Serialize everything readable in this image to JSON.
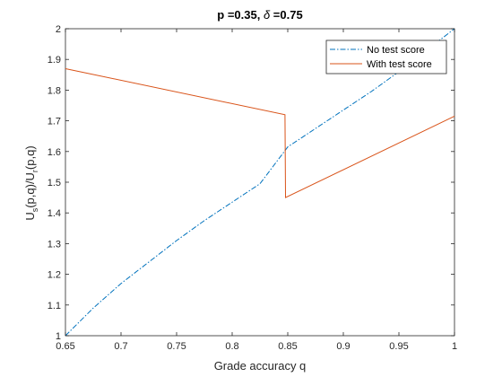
{
  "chart_data": {
    "type": "line",
    "title_prefix": "p =0.35, ",
    "title_symbol": "δ",
    "title_suffix": " =0.75",
    "xlabel": "Grade accuracy q",
    "ylabel_main": "U",
    "ylabel_sub1": "s",
    "ylabel_mid": "(p,q)/U",
    "ylabel_sub2": "r",
    "ylabel_end": "(p,q)",
    "xlim": [
      0.65,
      1.0
    ],
    "ylim": [
      1.0,
      2.0
    ],
    "xticks": [
      0.65,
      0.7,
      0.75,
      0.8,
      0.85,
      0.9,
      0.95,
      1.0
    ],
    "xtick_labels": [
      "0.65",
      "0.7",
      "0.75",
      "0.8",
      "0.85",
      "0.9",
      "0.95",
      "1"
    ],
    "yticks": [
      1.0,
      1.1,
      1.2,
      1.3,
      1.4,
      1.5,
      1.6,
      1.7,
      1.8,
      1.9,
      2.0
    ],
    "ytick_labels": [
      "1",
      "1.1",
      "1.2",
      "1.3",
      "1.4",
      "1.5",
      "1.6",
      "1.7",
      "1.8",
      "1.9",
      "2"
    ],
    "grid": false,
    "legend_position": "top-right",
    "series": [
      {
        "name": "No test score",
        "color": "#0072BD",
        "style": "dash-dot",
        "x": [
          0.65,
          0.675,
          0.7,
          0.725,
          0.75,
          0.775,
          0.8,
          0.825,
          0.85,
          0.875,
          0.9,
          0.925,
          0.95,
          0.975,
          1.0
        ],
        "y": [
          1.0,
          1.09,
          1.17,
          1.24,
          1.31,
          1.375,
          1.435,
          1.495,
          1.615,
          1.675,
          1.735,
          1.795,
          1.86,
          1.93,
          2.0
        ]
      },
      {
        "name": "With test score",
        "color": "#D95319",
        "style": "solid",
        "x": [
          0.65,
          0.8475,
          0.8475,
          0.848,
          1.0
        ],
        "y": [
          1.87,
          1.72,
          1.72,
          1.45,
          1.715
        ]
      }
    ]
  }
}
